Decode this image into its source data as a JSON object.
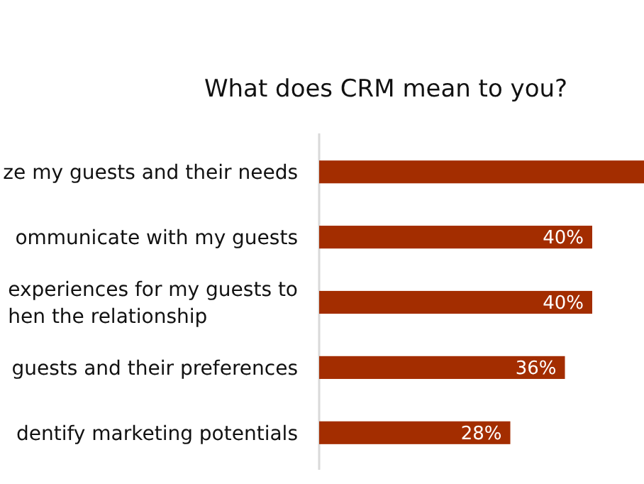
{
  "chart_data": {
    "type": "bar",
    "orientation": "horizontal",
    "title": "What does CRM mean to you?",
    "categories": [
      "ze my guests and their needs",
      "ommunicate with my guests",
      "experiences for my guests to\nhen the relationship",
      "guests and their preferences",
      "dentify marketing potentials"
    ],
    "values": [
      48,
      40,
      40,
      36,
      28
    ],
    "value_labels": [
      null,
      "40%",
      "40%",
      "36%",
      "28%"
    ],
    "color": "#a32d00"
  }
}
